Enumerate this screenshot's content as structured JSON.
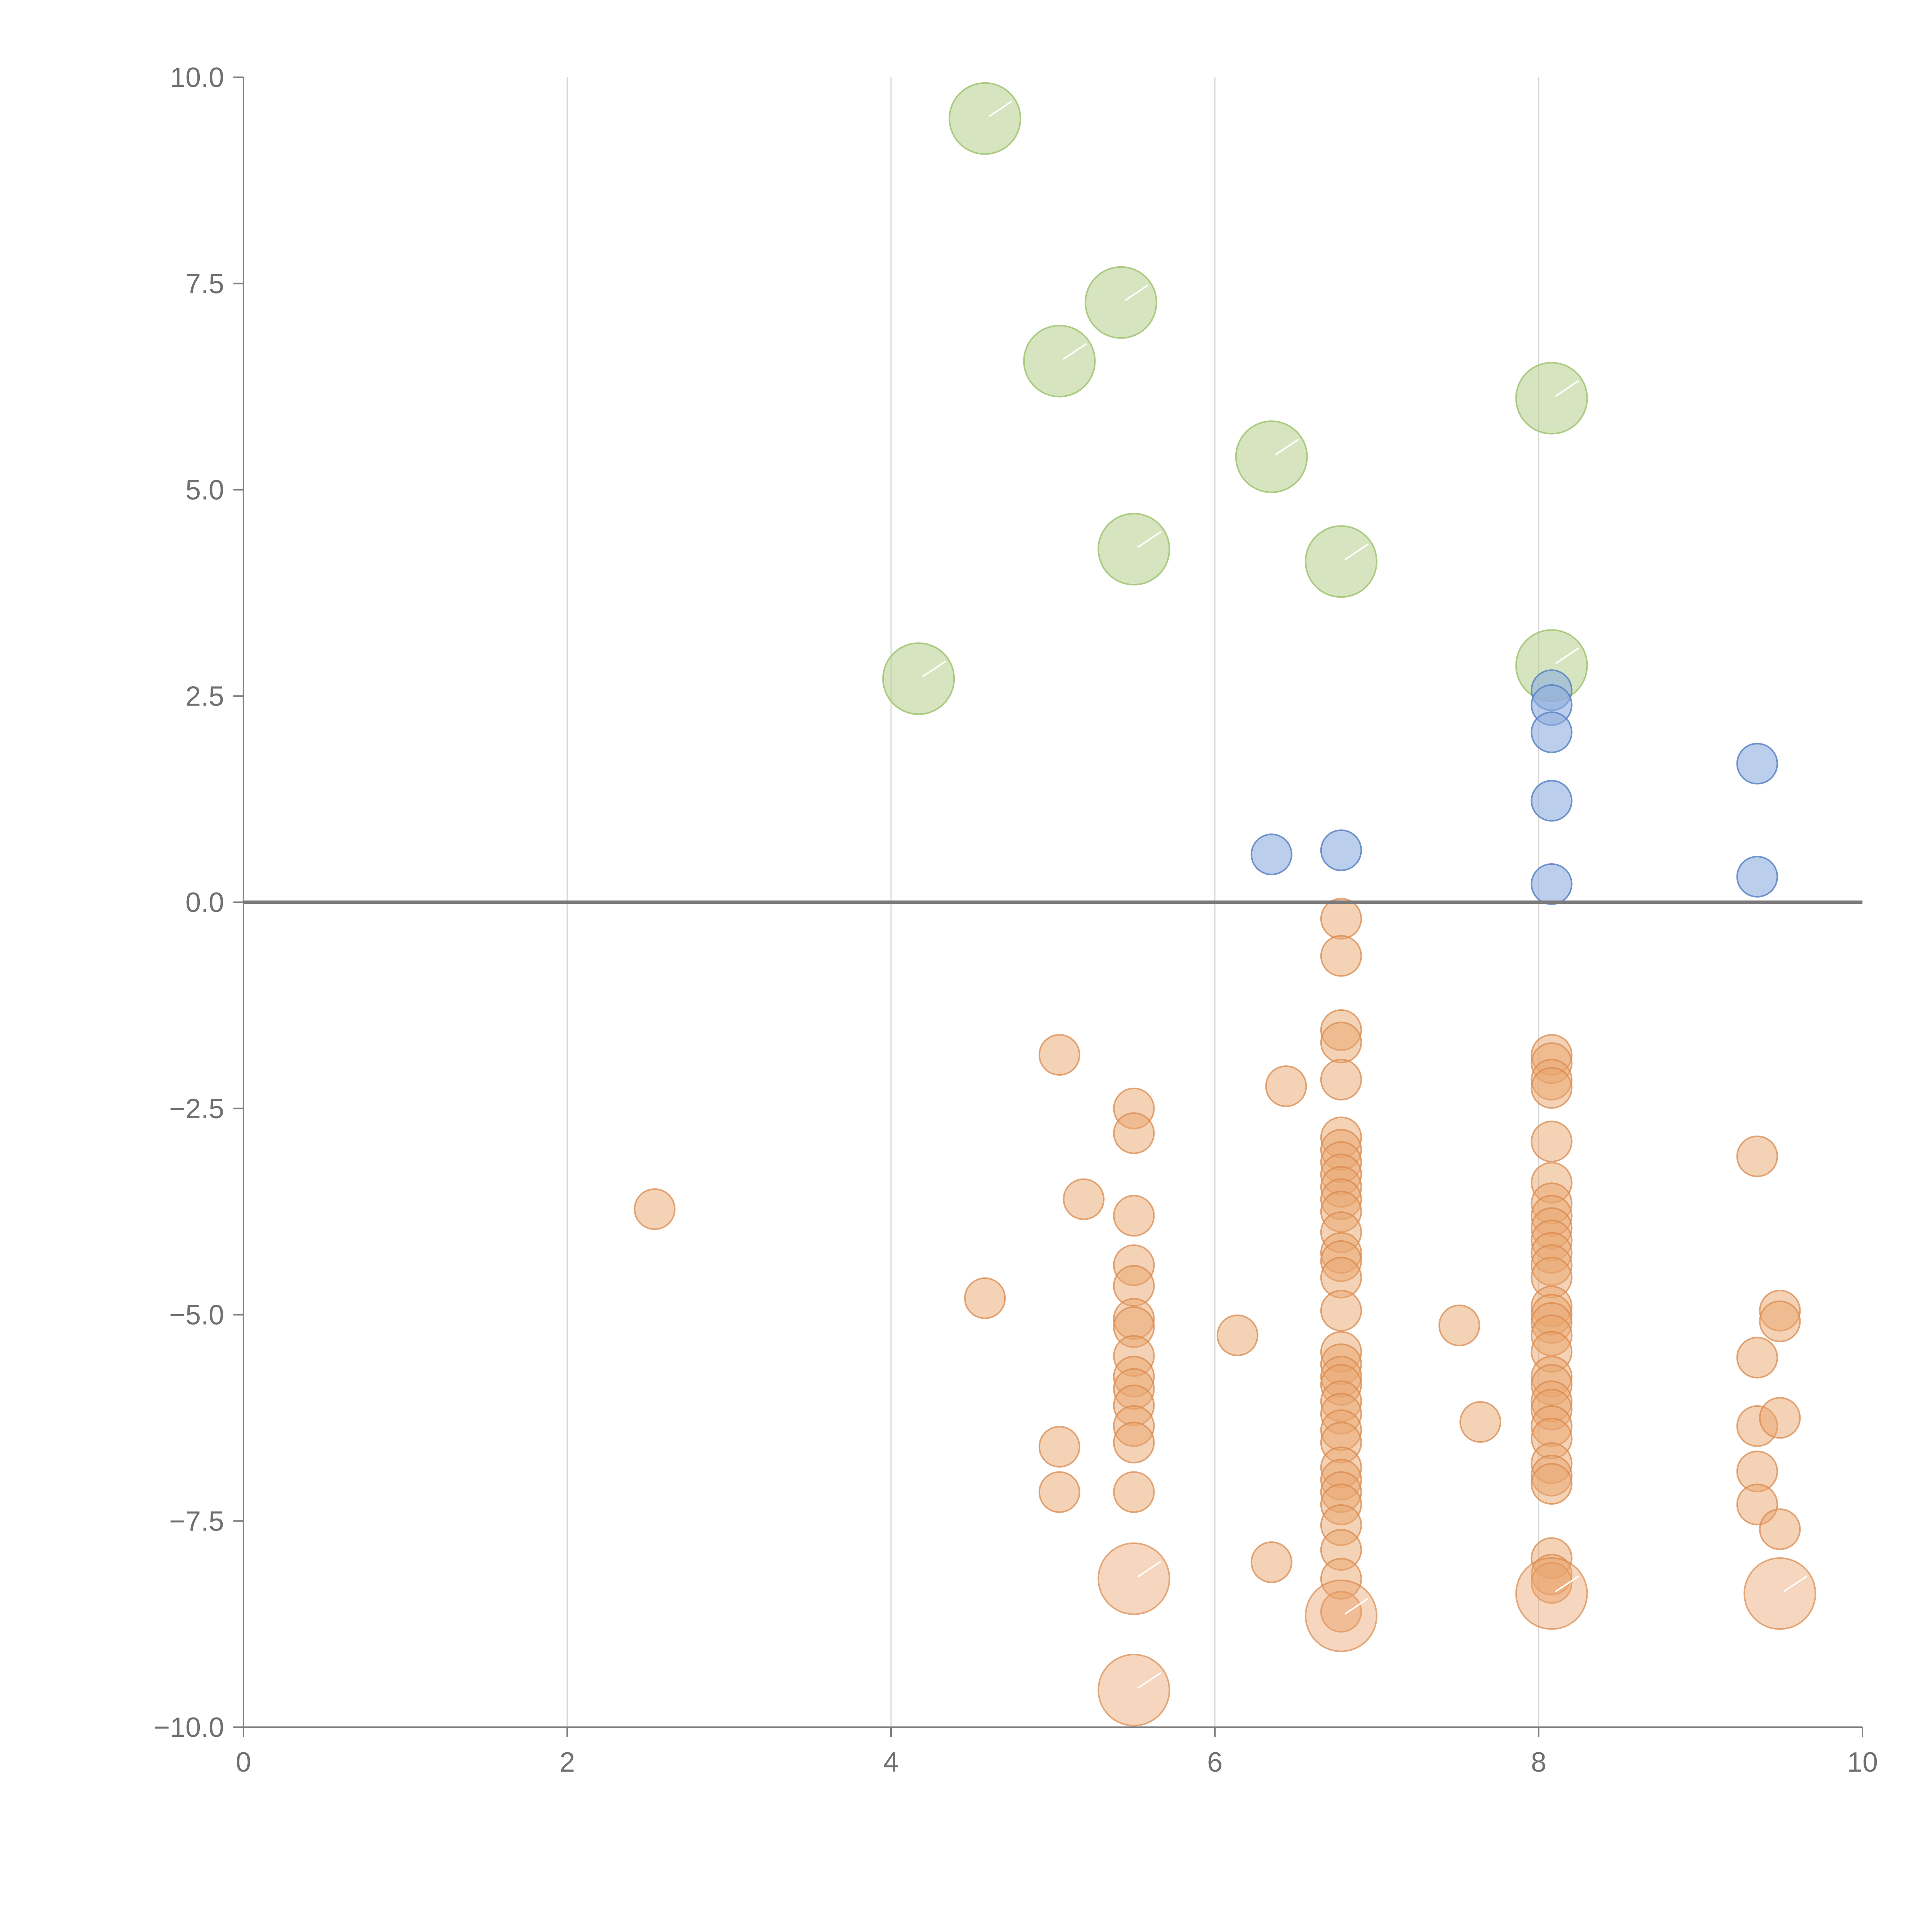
{
  "chart_data": {
    "type": "scatter",
    "subtype": "bubble",
    "title": "",
    "xlabel": "",
    "ylabel": "",
    "xlim": [
      0,
      10
    ],
    "ylim": [
      -10,
      10
    ],
    "x_ticks": [
      0,
      2,
      4,
      6,
      8,
      10
    ],
    "x_tick_labels": [
      "0",
      "2",
      "4",
      "6",
      "8",
      "10"
    ],
    "y_ticks": [
      10,
      7.5,
      5,
      2.5,
      0,
      -2.5,
      -5,
      -7.5,
      -10
    ],
    "y_tick_labels": [
      "10.0",
      "7.5",
      "5.0",
      "2.5",
      "0.0",
      "−2.5",
      "−5.0",
      "−7.5",
      "−10.0"
    ],
    "grid": "vertical",
    "reference_line_y": 0,
    "legend": "none",
    "series": [
      {
        "name": "green",
        "color": "#b5d08c",
        "stroke": "#9cc06a",
        "opacity": 0.55,
        "size": 3,
        "points": [
          [
            4.58,
            9.5
          ],
          [
            5.42,
            7.27
          ],
          [
            5.04,
            6.56
          ],
          [
            8.08,
            6.11
          ],
          [
            6.35,
            5.4
          ],
          [
            5.5,
            4.28
          ],
          [
            6.78,
            4.13
          ],
          [
            8.08,
            2.87
          ],
          [
            4.17,
            2.71
          ]
        ]
      },
      {
        "name": "blue",
        "color": "#8eaede",
        "stroke": "#5b84c4",
        "opacity": 0.6,
        "size": 1,
        "points": [
          [
            8.08,
            2.57
          ],
          [
            8.08,
            2.39
          ],
          [
            8.08,
            2.06
          ],
          [
            9.35,
            1.68
          ],
          [
            8.08,
            1.23
          ],
          [
            6.35,
            0.58
          ],
          [
            6.78,
            0.63
          ],
          [
            8.08,
            0.22
          ],
          [
            9.35,
            0.31
          ]
        ]
      },
      {
        "name": "orange",
        "color": "#eaa56e",
        "stroke": "#d98a4d",
        "opacity": 0.5,
        "size": 1,
        "points": [
          [
            6.78,
            -0.2
          ],
          [
            6.78,
            -0.65
          ],
          [
            6.78,
            -1.55
          ],
          [
            6.78,
            -1.7
          ],
          [
            6.78,
            -2.15
          ],
          [
            6.78,
            -2.85
          ],
          [
            6.78,
            -3.0
          ],
          [
            6.78,
            -3.15
          ],
          [
            6.78,
            -3.3
          ],
          [
            6.78,
            -3.45
          ],
          [
            6.78,
            -3.6
          ],
          [
            6.78,
            -3.75
          ],
          [
            6.78,
            -4.0
          ],
          [
            6.78,
            -4.25
          ],
          [
            6.78,
            -4.35
          ],
          [
            6.78,
            -4.55
          ],
          [
            6.78,
            -4.95
          ],
          [
            6.78,
            -5.45
          ],
          [
            6.78,
            -5.6
          ],
          [
            6.78,
            -5.75
          ],
          [
            6.78,
            -5.85
          ],
          [
            6.78,
            -6.05
          ],
          [
            6.78,
            -6.2
          ],
          [
            6.78,
            -6.4
          ],
          [
            6.78,
            -6.55
          ],
          [
            6.78,
            -6.85
          ],
          [
            6.78,
            -7.0
          ],
          [
            6.78,
            -7.15
          ],
          [
            6.78,
            -7.3
          ],
          [
            6.78,
            -7.55
          ],
          [
            6.78,
            -7.85
          ],
          [
            6.78,
            -8.2
          ],
          [
            6.78,
            -8.6
          ],
          [
            8.08,
            -1.85
          ],
          [
            8.08,
            -1.95
          ],
          [
            8.08,
            -2.15
          ],
          [
            8.08,
            -2.25
          ],
          [
            8.08,
            -2.9
          ],
          [
            8.08,
            -3.4
          ],
          [
            8.08,
            -3.65
          ],
          [
            8.08,
            -3.8
          ],
          [
            8.08,
            -3.95
          ],
          [
            8.08,
            -4.1
          ],
          [
            8.08,
            -4.25
          ],
          [
            8.08,
            -4.4
          ],
          [
            8.08,
            -4.55
          ],
          [
            8.08,
            -4.9
          ],
          [
            8.08,
            -5.0
          ],
          [
            8.08,
            -5.1
          ],
          [
            8.08,
            -5.25
          ],
          [
            8.08,
            -5.45
          ],
          [
            8.08,
            -5.75
          ],
          [
            8.08,
            -5.85
          ],
          [
            8.08,
            -6.05
          ],
          [
            8.08,
            -6.15
          ],
          [
            8.08,
            -6.35
          ],
          [
            8.08,
            -6.5
          ],
          [
            8.08,
            -6.8
          ],
          [
            8.08,
            -6.95
          ],
          [
            8.08,
            -7.05
          ],
          [
            8.08,
            -7.95
          ],
          [
            8.08,
            -8.15
          ],
          [
            8.08,
            -8.25
          ],
          [
            5.5,
            -2.5
          ],
          [
            5.5,
            -2.8
          ],
          [
            5.5,
            -3.8
          ],
          [
            5.5,
            -4.4
          ],
          [
            5.5,
            -4.65
          ],
          [
            5.5,
            -5.05
          ],
          [
            5.5,
            -5.15
          ],
          [
            5.5,
            -5.5
          ],
          [
            5.5,
            -5.75
          ],
          [
            5.5,
            -5.9
          ],
          [
            5.5,
            -6.1
          ],
          [
            5.5,
            -6.35
          ],
          [
            5.5,
            -6.55
          ],
          [
            5.5,
            -7.15
          ],
          [
            5.04,
            -1.85
          ],
          [
            5.04,
            -6.6
          ],
          [
            5.04,
            -7.15
          ],
          [
            5.19,
            -3.6
          ],
          [
            4.58,
            -4.8
          ],
          [
            2.54,
            -3.72
          ],
          [
            6.44,
            -2.23
          ],
          [
            6.14,
            -5.25
          ],
          [
            6.35,
            -8.0
          ],
          [
            7.51,
            -5.13
          ],
          [
            7.64,
            -6.3
          ],
          [
            9.35,
            -3.08
          ],
          [
            9.35,
            -5.52
          ],
          [
            9.35,
            -6.35
          ],
          [
            9.35,
            -6.9
          ],
          [
            9.35,
            -7.3
          ],
          [
            9.49,
            -4.95
          ],
          [
            9.49,
            -5.08
          ],
          [
            9.49,
            -6.25
          ],
          [
            9.49,
            -7.6
          ]
        ]
      },
      {
        "name": "orange-large",
        "color": "#eaa56e",
        "stroke": "#d98a4d",
        "opacity": 0.45,
        "size": 3,
        "points": [
          [
            5.5,
            -8.2
          ],
          [
            6.78,
            -8.65
          ],
          [
            8.08,
            -8.38
          ],
          [
            9.49,
            -8.38
          ],
          [
            5.5,
            -9.55
          ]
        ]
      }
    ]
  }
}
